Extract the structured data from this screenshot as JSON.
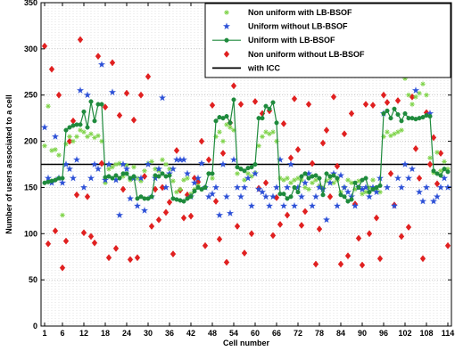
{
  "chart_data": {
    "type": "scatter",
    "title": "",
    "xlabel": "Cell number",
    "ylabel": "Number of users associated to a cell",
    "xlim": [
      0,
      115
    ],
    "ylim": [
      0,
      350
    ],
    "x_ticks": [
      1,
      6,
      12,
      18,
      24,
      30,
      36,
      42,
      48,
      54,
      60,
      66,
      72,
      78,
      84,
      90,
      96,
      102,
      108,
      114
    ],
    "y_ticks": [
      0,
      50,
      100,
      150,
      200,
      250,
      300,
      350
    ],
    "grid": true,
    "grid_style": "dotted",
    "legend_position": "top-right",
    "icc_level": 175,
    "series": [
      {
        "name": "Non uniform with LB-BSOF",
        "marker": "asterisk",
        "color": "#7fd34a",
        "x": [
          1,
          2,
          3,
          4,
          5,
          6,
          7,
          8,
          9,
          10,
          11,
          12,
          13,
          14,
          15,
          16,
          17,
          18,
          19,
          20,
          21,
          22,
          23,
          24,
          25,
          26,
          27,
          28,
          29,
          30,
          31,
          32,
          33,
          34,
          35,
          36,
          37,
          38,
          39,
          40,
          41,
          42,
          43,
          44,
          45,
          46,
          47,
          48,
          49,
          50,
          51,
          52,
          53,
          54,
          55,
          56,
          57,
          58,
          59,
          60,
          61,
          62,
          63,
          64,
          65,
          66,
          67,
          68,
          69,
          70,
          71,
          72,
          73,
          74,
          75,
          76,
          77,
          78,
          79,
          80,
          81,
          82,
          83,
          84,
          85,
          86,
          87,
          88,
          89,
          90,
          91,
          92,
          93,
          94,
          95,
          96,
          97,
          98,
          99,
          100,
          101,
          102,
          103,
          104,
          105,
          106,
          107,
          108,
          109,
          110,
          111,
          112,
          113,
          114
        ],
        "values": [
          195,
          238,
          190,
          191,
          185,
          120,
          197,
          205,
          200,
          205,
          212,
          210,
          205,
          208,
          204,
          206,
          200,
          155,
          170,
          172,
          175,
          176,
          162,
          174,
          158,
          172,
          160,
          157,
          168,
          176,
          178,
          170,
          168,
          180,
          175,
          170,
          157,
          145,
          148,
          158,
          160,
          143,
          148,
          152,
          148,
          150,
          165,
          160,
          205,
          210,
          200,
          218,
          215,
          212,
          165,
          170,
          158,
          165,
          162,
          166,
          195,
          205,
          210,
          208,
          210,
          200,
          160,
          158,
          160,
          155,
          158,
          160,
          158,
          150,
          148,
          155,
          158,
          152,
          150,
          157,
          160,
          155,
          158,
          145,
          150,
          158,
          155,
          148,
          157,
          143,
          145,
          150,
          158,
          148,
          145,
          205,
          210,
          206,
          208,
          210,
          212,
          268,
          250,
          240,
          248,
          252,
          262,
          250,
          182,
          166,
          188,
          168,
          178,
          170
        ]
      },
      {
        "name": "Uniform without LB-BSOF",
        "marker": "star",
        "color": "#2b4fd6",
        "x": [
          1,
          2,
          3,
          4,
          5,
          6,
          7,
          8,
          9,
          10,
          11,
          12,
          13,
          14,
          15,
          16,
          17,
          18,
          19,
          20,
          21,
          22,
          23,
          24,
          25,
          26,
          27,
          28,
          29,
          30,
          31,
          32,
          33,
          34,
          35,
          36,
          37,
          38,
          39,
          40,
          41,
          42,
          43,
          44,
          45,
          46,
          47,
          48,
          49,
          50,
          51,
          52,
          53,
          54,
          55,
          56,
          57,
          58,
          59,
          60,
          61,
          62,
          63,
          64,
          65,
          66,
          67,
          68,
          69,
          70,
          71,
          72,
          73,
          74,
          75,
          76,
          77,
          78,
          79,
          80,
          81,
          82,
          83,
          84,
          85,
          86,
          87,
          88,
          89,
          90,
          91,
          92,
          93,
          94,
          95,
          96,
          97,
          98,
          99,
          100,
          101,
          102,
          103,
          104,
          105,
          106,
          107,
          108,
          109,
          110,
          111,
          112,
          113,
          114
        ],
        "values": [
          215,
          160,
          155,
          205,
          160,
          155,
          175,
          170,
          160,
          180,
          255,
          150,
          250,
          160,
          175,
          170,
          283,
          158,
          175,
          253,
          158,
          120,
          175,
          170,
          138,
          160,
          130,
          160,
          125,
          175,
          140,
          160,
          170,
          247,
          150,
          165,
          170,
          180,
          180,
          180,
          165,
          140,
          155,
          160,
          176,
          150,
          140,
          143,
          150,
          120,
          175,
          140,
          122,
          180,
          150,
          140,
          150,
          160,
          130,
          165,
          148,
          145,
          140,
          130,
          140,
          150,
          180,
          130,
          150,
          175,
          130,
          150,
          140,
          155,
          165,
          130,
          140,
          150,
          148,
          115,
          155,
          165,
          130,
          163,
          150,
          145,
          140,
          130,
          150,
          148,
          150,
          140,
          150,
          145,
          160,
          230,
          150,
          272,
          130,
          160,
          150,
          175,
          160,
          170,
          255,
          145,
          135,
          150,
          230,
          135,
          140,
          150,
          160,
          150
        ]
      },
      {
        "name": "Uniform with LB-BSOF",
        "marker": "circle",
        "color": "#1e8a3c",
        "x": [
          1,
          2,
          3,
          4,
          5,
          6,
          7,
          8,
          9,
          10,
          11,
          12,
          13,
          14,
          15,
          16,
          17,
          18,
          19,
          20,
          21,
          22,
          23,
          24,
          25,
          26,
          27,
          28,
          29,
          30,
          31,
          32,
          33,
          34,
          35,
          36,
          37,
          38,
          39,
          40,
          41,
          42,
          43,
          44,
          45,
          46,
          47,
          48,
          49,
          50,
          51,
          52,
          53,
          54,
          55,
          56,
          57,
          58,
          59,
          60,
          61,
          62,
          63,
          64,
          65,
          66,
          67,
          68,
          69,
          70,
          71,
          72,
          73,
          74,
          75,
          76,
          77,
          78,
          79,
          80,
          81,
          82,
          83,
          84,
          85,
          86,
          87,
          88,
          89,
          90,
          91,
          92,
          93,
          94,
          95,
          96,
          97,
          98,
          99,
          100,
          101,
          102,
          103,
          104,
          105,
          106,
          107,
          108,
          109,
          110,
          111,
          112,
          113,
          114
        ],
        "values": [
          155,
          156,
          157,
          158,
          160,
          160,
          212,
          215,
          217,
          218,
          218,
          232,
          215,
          243,
          222,
          240,
          240,
          161,
          162,
          160,
          163,
          160,
          165,
          165,
          160,
          162,
          138,
          140,
          138,
          138,
          140,
          163,
          162,
          165,
          162,
          163,
          138,
          137,
          136,
          135,
          138,
          140,
          146,
          150,
          148,
          150,
          165,
          165,
          222,
          226,
          225,
          227,
          220,
          245,
          172,
          170,
          168,
          171,
          172,
          175,
          225,
          225,
          238,
          235,
          242,
          220,
          143,
          143,
          138,
          140,
          150,
          145,
          162,
          165,
          160,
          162,
          163,
          160,
          142,
          165,
          162,
          163,
          160,
          142,
          140,
          135,
          137,
          155,
          150,
          158,
          160,
          145,
          148,
          150,
          152,
          230,
          233,
          225,
          235,
          229,
          222,
          230,
          225,
          225,
          224,
          225,
          226,
          228,
          227,
          168,
          165,
          163,
          170,
          167
        ]
      },
      {
        "name": "Non uniform without LB-BSOF",
        "marker": "diamond",
        "color": "#e02020",
        "x": [
          1,
          2,
          3,
          4,
          5,
          6,
          7,
          8,
          9,
          10,
          11,
          12,
          13,
          14,
          15,
          16,
          17,
          18,
          19,
          20,
          21,
          22,
          23,
          24,
          25,
          26,
          27,
          28,
          29,
          30,
          31,
          32,
          33,
          34,
          35,
          36,
          37,
          38,
          39,
          40,
          41,
          42,
          43,
          44,
          45,
          46,
          47,
          48,
          49,
          50,
          51,
          52,
          53,
          54,
          55,
          56,
          57,
          58,
          59,
          60,
          61,
          62,
          63,
          64,
          65,
          66,
          67,
          68,
          69,
          70,
          71,
          72,
          73,
          74,
          75,
          76,
          77,
          78,
          79,
          80,
          81,
          82,
          83,
          84,
          85,
          86,
          87,
          88,
          89,
          90,
          91,
          92,
          93,
          94,
          95,
          96,
          97,
          98,
          99,
          100,
          101,
          102,
          103,
          104,
          105,
          106,
          107,
          108,
          109,
          110,
          111,
          112,
          113,
          114
        ],
        "values": [
          303,
          89,
          278,
          103,
          250,
          63,
          92,
          200,
          222,
          142,
          310,
          101,
          140,
          97,
          90,
          292,
          176,
          237,
          74,
          285,
          84,
          228,
          148,
          252,
          72,
          223,
          74,
          250,
          162,
          270,
          108,
          148,
          115,
          150,
          123,
          134,
          78,
          190,
          147,
          117,
          142,
          119,
          160,
          156,
          200,
          87,
          180,
          239,
          135,
          94,
          187,
          69,
          220,
          260,
          108,
          240,
          79,
          300,
          100,
          243,
          149,
          230,
          155,
          233,
          98,
          139,
          110,
          219,
          120,
          182,
          246,
          191,
          109,
          124,
          240,
          176,
          67,
          105,
          198,
          212,
          140,
          248,
          173,
          67,
          208,
          76,
          230,
          132,
          95,
          66,
          240,
          100,
          239,
          117,
          73,
          250,
          242,
          165,
          131,
          244,
          97,
          339,
          107,
          248,
          192,
          160,
          73,
          231,
          175,
          204,
          154,
          187,
          279,
          87
        ]
      }
    ]
  },
  "legend_entries": [
    {
      "label": "Non uniform with LB-BSOF",
      "color": "#7fd34a",
      "marker": "asterisk"
    },
    {
      "label": "Uniform without LB-BSOF",
      "color": "#2b4fd6",
      "marker": "star"
    },
    {
      "label": "Uniform with LB-BSOF",
      "color": "#1e8a3c",
      "marker": "line-circle"
    },
    {
      "label": "Non uniform without LB-BSOF",
      "color": "#e02020",
      "marker": "diamond"
    },
    {
      "label": "with ICC",
      "color": "#000000",
      "marker": "line"
    }
  ]
}
